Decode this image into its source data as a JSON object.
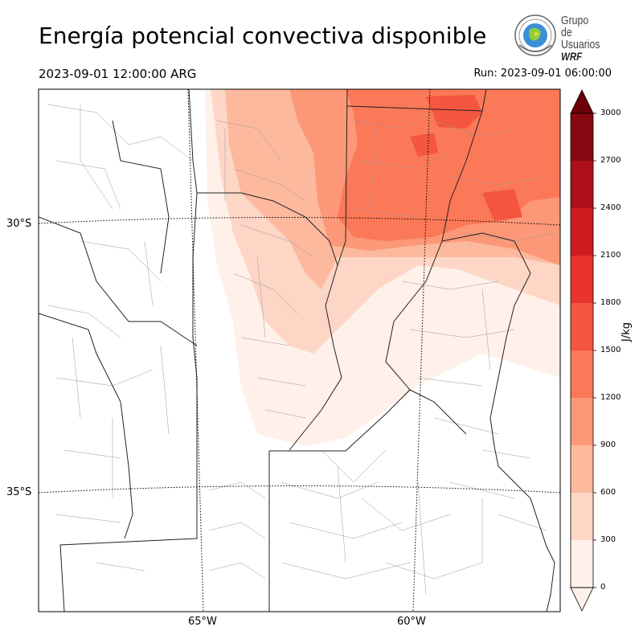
{
  "title": "Energía potencial convectiva disponible",
  "valid_time": "2023-09-01 12:00:00 ARG",
  "run_time": "Run: 2023-09-01 06:00:00",
  "logo": {
    "line1": "Grupo de",
    "line2": "Usuarios",
    "line3": "WRF"
  },
  "lat_labels": [
    "30°S",
    "35°S"
  ],
  "lon_labels": [
    "65°W",
    "60°W"
  ],
  "colorbar": {
    "unit": "J/kg",
    "ticks": [
      "0",
      "300",
      "600",
      "900",
      "1200",
      "1500",
      "1800",
      "2100",
      "2400",
      "2700",
      "3000"
    ],
    "colors": [
      "#fff0ea",
      "#fdd6c6",
      "#fcb99e",
      "#fc9877",
      "#fb7858",
      "#f45640",
      "#e8342b",
      "#ce1b1e",
      "#ad1018",
      "#870811"
    ],
    "over_color": "#6b0009"
  }
}
